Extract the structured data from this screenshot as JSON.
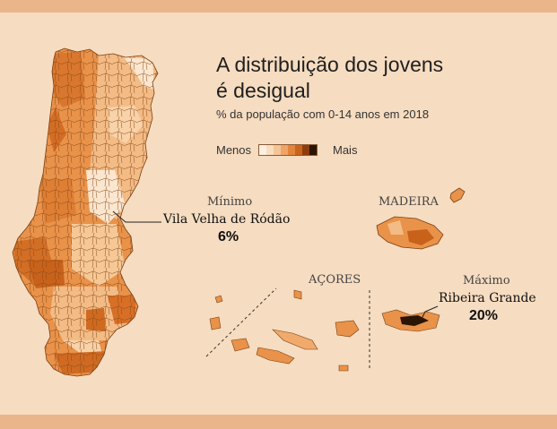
{
  "title": "A distribuição dos jovens é desigual",
  "subtitle": "% da população com 0-14 anos em 2018",
  "legend": {
    "low_label": "Menos",
    "high_label": "Mais",
    "colors": [
      "#fdf0e2",
      "#f9ddc0",
      "#f5c596",
      "#eea566",
      "#e2853c",
      "#c9641d",
      "#8f3d0c",
      "#2a1505"
    ]
  },
  "regions": {
    "madeira": "MADEIRA",
    "acores": "AÇORES"
  },
  "minimum": {
    "label": "Mínimo",
    "place": "Vila Velha de Ródão",
    "value": "6%"
  },
  "maximum": {
    "label": "Máximo",
    "place": "Ribeira Grande",
    "value": "20%"
  },
  "colors": {
    "background": "#f6dcc0",
    "band": "#eab58a",
    "base_fill": "#e9924a",
    "dark_fill": "#c8621b",
    "light_fill": "#f8d7b0",
    "border": "#7a3e12"
  }
}
